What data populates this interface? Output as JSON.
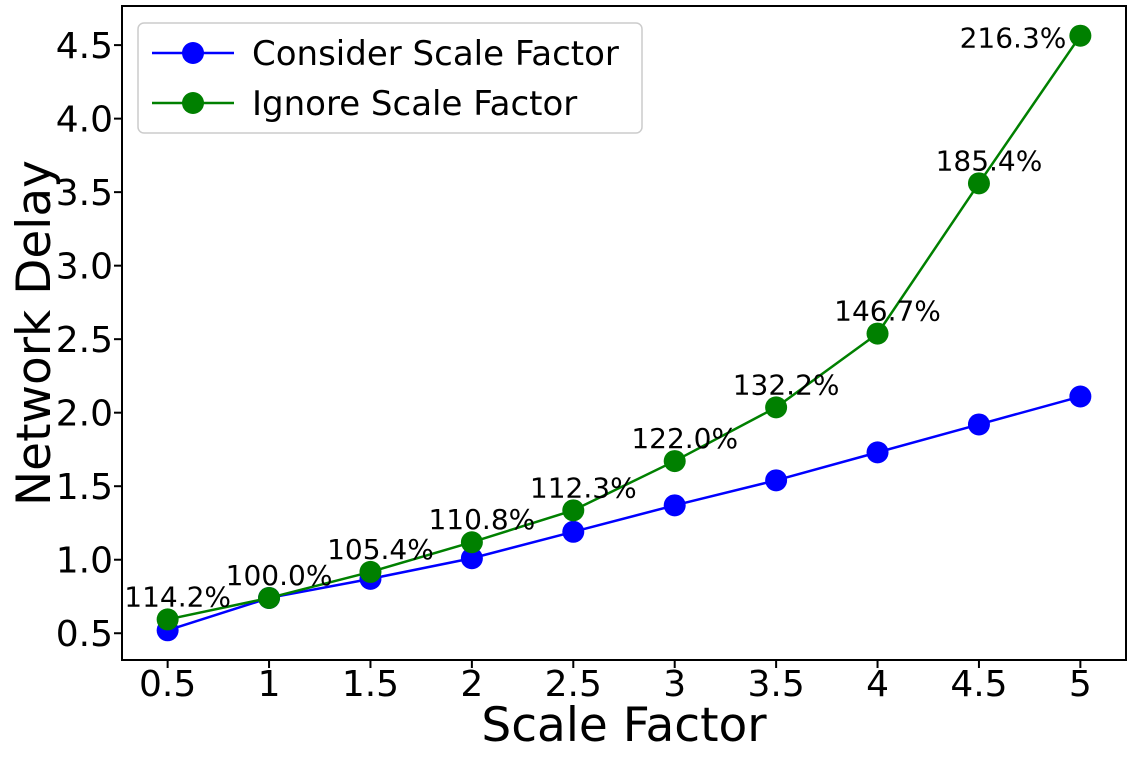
{
  "chart_data": {
    "type": "line",
    "title": "",
    "xlabel": "Scale Factor",
    "ylabel": "Network Delay",
    "x": [
      0.5,
      1,
      1.5,
      2,
      2.5,
      3,
      3.5,
      4,
      4.5,
      5
    ],
    "series": [
      {
        "name": "Consider Scale Factor",
        "color": "#0000ff",
        "values": [
          0.52,
          0.74,
          0.87,
          1.01,
          1.19,
          1.37,
          1.54,
          1.73,
          1.92,
          2.11
        ]
      },
      {
        "name": "Ignore Scale Factor",
        "color": "#008000",
        "values": [
          0.594,
          0.74,
          0.917,
          1.119,
          1.336,
          1.671,
          2.036,
          2.538,
          3.56,
          4.564
        ],
        "point_labels": [
          "114.2%",
          "100.0%",
          "105.4%",
          "110.8%",
          "112.3%",
          "122.0%",
          "132.2%",
          "146.7%",
          "185.4%",
          "216.3%"
        ]
      }
    ],
    "xtick_labels": [
      "0.5",
      "1",
      "1.5",
      "2",
      "2.5",
      "3",
      "3.5",
      "4",
      "4.5",
      "5"
    ],
    "ytick_labels": [
      "0.5",
      "1.0",
      "1.5",
      "2.0",
      "2.5",
      "3.0",
      "3.5",
      "4.0",
      "4.5"
    ],
    "xlim": [
      0.275,
      5.225
    ],
    "ylim": [
      0.318,
      4.766
    ],
    "grid": false,
    "legend_position": "upper left",
    "background_color": "#ffffff",
    "axis_color": "#000000",
    "legend_border_color": "#cccccc"
  }
}
